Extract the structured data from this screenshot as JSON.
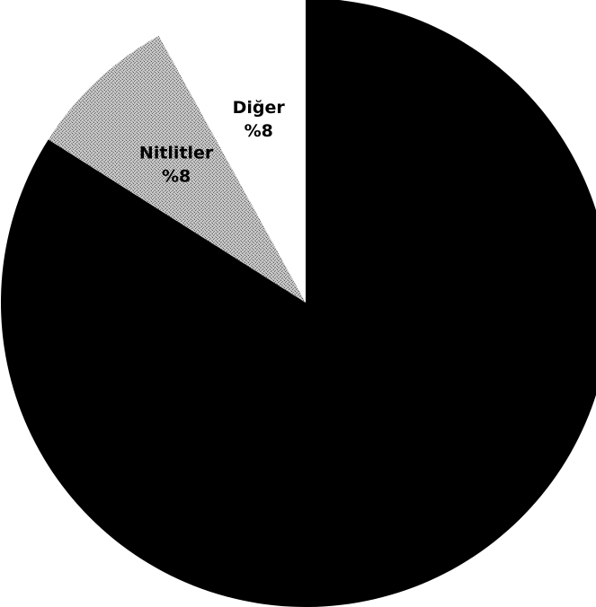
{
  "chart_data": {
    "type": "pie",
    "slices": [
      {
        "label": "",
        "percent_label": "",
        "value": 84,
        "color": "#000000",
        "text_color": "#ffffff"
      },
      {
        "label": "Diğer",
        "percent_label": "%8",
        "value": 8,
        "color": "#ffffff",
        "text_color": "#000000"
      },
      {
        "label": "Nitlitler",
        "percent_label": "%8",
        "value": 8,
        "color": "#b5b5b5",
        "text_color": "#000000"
      }
    ],
    "start_angle_deg": 0,
    "direction": "clockwise-from-largest"
  }
}
